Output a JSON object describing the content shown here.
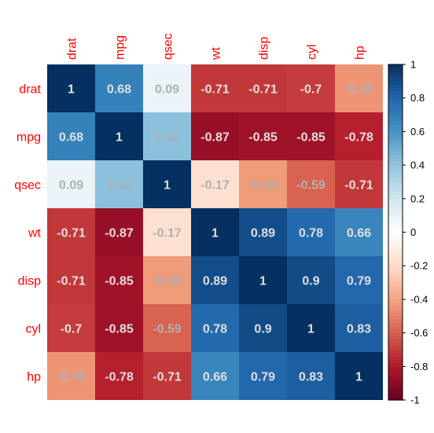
{
  "chart_data": {
    "type": "heatmap",
    "labels": [
      "drat",
      "mpg",
      "qsec",
      "wt",
      "disp",
      "cyl",
      "hp"
    ],
    "matrix": [
      [
        1,
        0.68,
        0.09,
        -0.71,
        -0.71,
        -0.7,
        -0.45
      ],
      [
        0.68,
        1,
        0.42,
        -0.87,
        -0.85,
        -0.85,
        -0.78
      ],
      [
        0.09,
        0.42,
        1,
        -0.17,
        -0.43,
        -0.59,
        -0.71
      ],
      [
        -0.71,
        -0.87,
        -0.17,
        1,
        0.89,
        0.78,
        0.66
      ],
      [
        -0.71,
        -0.85,
        -0.43,
        0.89,
        1,
        0.9,
        0.79
      ],
      [
        -0.7,
        -0.85,
        -0.59,
        0.78,
        0.9,
        1,
        0.83
      ],
      [
        -0.45,
        -0.78,
        -0.71,
        0.66,
        0.79,
        0.83,
        1
      ]
    ],
    "colorbar": {
      "range": [
        -1,
        1
      ],
      "ticks": [
        1,
        0.8,
        0.6,
        0.4,
        0.2,
        0,
        -0.2,
        -0.4,
        -0.6,
        -0.8,
        -1
      ],
      "palette": [
        "#67001F",
        "#B2182B",
        "#D6604D",
        "#F4A582",
        "#FDDBC7",
        "#FFFFFF",
        "#D1E5F0",
        "#92C5DE",
        "#4393C3",
        "#2166AC",
        "#053061"
      ]
    },
    "label_color": "#FF0000",
    "value_text_light": "#E0E0E0",
    "value_text_dark": "#B0B0B0",
    "grid": false,
    "legend_position": "right"
  }
}
